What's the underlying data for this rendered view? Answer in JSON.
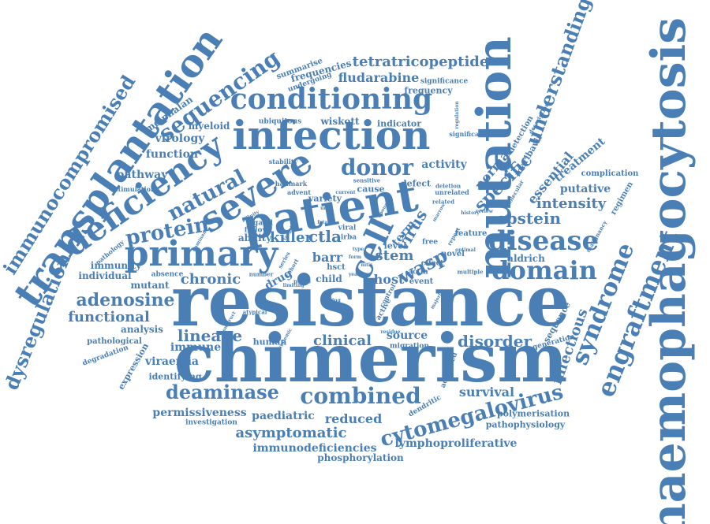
{
  "color": "#4a7fb5",
  "words": [
    {
      "text": "resistance"
    },
    {
      "text": "chimerism"
    },
    {
      "text": "haemophagocytosis"
    },
    {
      "text": "mutation"
    },
    {
      "text": "patient"
    },
    {
      "text": "infection"
    },
    {
      "text": "transplantation"
    },
    {
      "text": "deficiency"
    },
    {
      "text": "severe"
    },
    {
      "text": "primary"
    },
    {
      "text": "cell"
    },
    {
      "text": "conditioning"
    },
    {
      "text": "immunocompromised"
    },
    {
      "text": "dysregulation"
    },
    {
      "text": "engraftment"
    },
    {
      "text": "syndrome"
    },
    {
      "text": "disease"
    },
    {
      "text": "domain"
    },
    {
      "text": "understanding"
    },
    {
      "text": "cytomegalovirus"
    },
    {
      "text": "combined"
    },
    {
      "text": "deaminase"
    },
    {
      "text": "sequencing"
    },
    {
      "text": "donor"
    },
    {
      "text": "natural"
    },
    {
      "text": "protein"
    },
    {
      "text": "adenosine"
    },
    {
      "text": "specific"
    },
    {
      "text": "wasp"
    },
    {
      "text": "epstein"
    },
    {
      "text": "tetratricopeptide"
    },
    {
      "text": "fludarabine"
    },
    {
      "text": "infectious"
    },
    {
      "text": "lineage"
    },
    {
      "text": "functional"
    },
    {
      "text": "chronic"
    },
    {
      "text": "disorder"
    },
    {
      "text": "clinical"
    },
    {
      "text": "killer"
    },
    {
      "text": "virus"
    },
    {
      "text": "ctla"
    },
    {
      "text": "stem"
    },
    {
      "text": "reduced"
    },
    {
      "text": "asymptomatic"
    },
    {
      "text": "paediatric"
    },
    {
      "text": "survival"
    },
    {
      "text": "immunodeficiencies"
    },
    {
      "text": "permissiveness"
    },
    {
      "text": "lymphoproliferative"
    },
    {
      "text": "phosphorylation"
    },
    {
      "text": "intensity"
    },
    {
      "text": "putative"
    },
    {
      "text": "normal"
    },
    {
      "text": "essential"
    },
    {
      "text": "treatment"
    },
    {
      "text": "aldrich"
    },
    {
      "text": "activity"
    },
    {
      "text": "wiskott"
    },
    {
      "text": "virology"
    },
    {
      "text": "function"
    },
    {
      "text": "melphalan"
    },
    {
      "text": "myeloid"
    },
    {
      "text": "pathway"
    },
    {
      "text": "immune"
    },
    {
      "text": "viraemia"
    },
    {
      "text": "source"
    },
    {
      "text": "host"
    },
    {
      "text": "barr"
    },
    {
      "text": "drug"
    },
    {
      "text": "term"
    },
    {
      "text": "child"
    },
    {
      "text": "analysis"
    },
    {
      "text": "immunity"
    },
    {
      "text": "mutant"
    },
    {
      "text": "individual"
    },
    {
      "text": "ability"
    },
    {
      "text": "identifying"
    },
    {
      "text": "expression"
    },
    {
      "text": "degradation"
    },
    {
      "text": "pathological"
    },
    {
      "text": "frequencies"
    },
    {
      "text": "frequency"
    },
    {
      "text": "significance"
    },
    {
      "text": "summarise"
    },
    {
      "text": "undergoing"
    },
    {
      "text": "ubiquitous"
    },
    {
      "text": "indicator"
    },
    {
      "text": "maribavir"
    },
    {
      "text": "detection"
    },
    {
      "text": "complication"
    },
    {
      "text": "regimen"
    },
    {
      "text": "sequence"
    },
    {
      "text": "generation"
    },
    {
      "text": "polymerisation"
    },
    {
      "text": "pathophysiology"
    },
    {
      "text": "investigation"
    },
    {
      "text": "dendritic"
    },
    {
      "text": "advanced"
    },
    {
      "text": "human"
    },
    {
      "text": "migration"
    },
    {
      "text": "defect"
    },
    {
      "text": "cause"
    },
    {
      "text": "variety"
    },
    {
      "text": "level"
    },
    {
      "text": "feature"
    },
    {
      "text": "novel"
    },
    {
      "text": "event"
    },
    {
      "text": "actin"
    },
    {
      "text": "hsct"
    },
    {
      "text": "stimulation"
    },
    {
      "text": "pathology"
    },
    {
      "text": "stability"
    },
    {
      "text": "hallmark"
    },
    {
      "text": "advent"
    },
    {
      "text": "sensitive"
    },
    {
      "text": "deletion"
    },
    {
      "text": "unrelated"
    },
    {
      "text": "related"
    },
    {
      "text": "significant"
    },
    {
      "text": "regulation"
    },
    {
      "text": "description"
    },
    {
      "text": "molecular"
    },
    {
      "text": "malignancy"
    },
    {
      "text": "history"
    },
    {
      "text": "optimal"
    },
    {
      "text": "multiple"
    },
    {
      "text": "affinity"
    },
    {
      "text": "ligand"
    },
    {
      "text": "follow"
    },
    {
      "text": "viral"
    },
    {
      "text": "irba"
    },
    {
      "text": "free"
    },
    {
      "text": "effect"
    },
    {
      "text": "absence"
    },
    {
      "text": "number"
    },
    {
      "text": "atypical"
    },
    {
      "text": "pbscs"
    },
    {
      "text": "systemic"
    },
    {
      "text": "residue"
    },
    {
      "text": "active"
    },
    {
      "text": "control"
    },
    {
      "text": "testing"
    },
    {
      "text": "majority"
    },
    {
      "text": "construct"
    },
    {
      "text": "dominant"
    },
    {
      "text": "series"
    },
    {
      "text": "cohort"
    },
    {
      "text": "repeat"
    },
    {
      "text": "limiting"
    },
    {
      "text": "target"
    },
    {
      "text": "year"
    },
    {
      "text": "current"
    },
    {
      "text": "abound"
    },
    {
      "text": "review"
    },
    {
      "text": "marrow"
    },
    {
      "text": "form"
    },
    {
      "text": "nitis"
    },
    {
      "text": "type"
    },
    {
      "text": "fatal"
    },
    {
      "text": "unit"
    }
  ]
}
